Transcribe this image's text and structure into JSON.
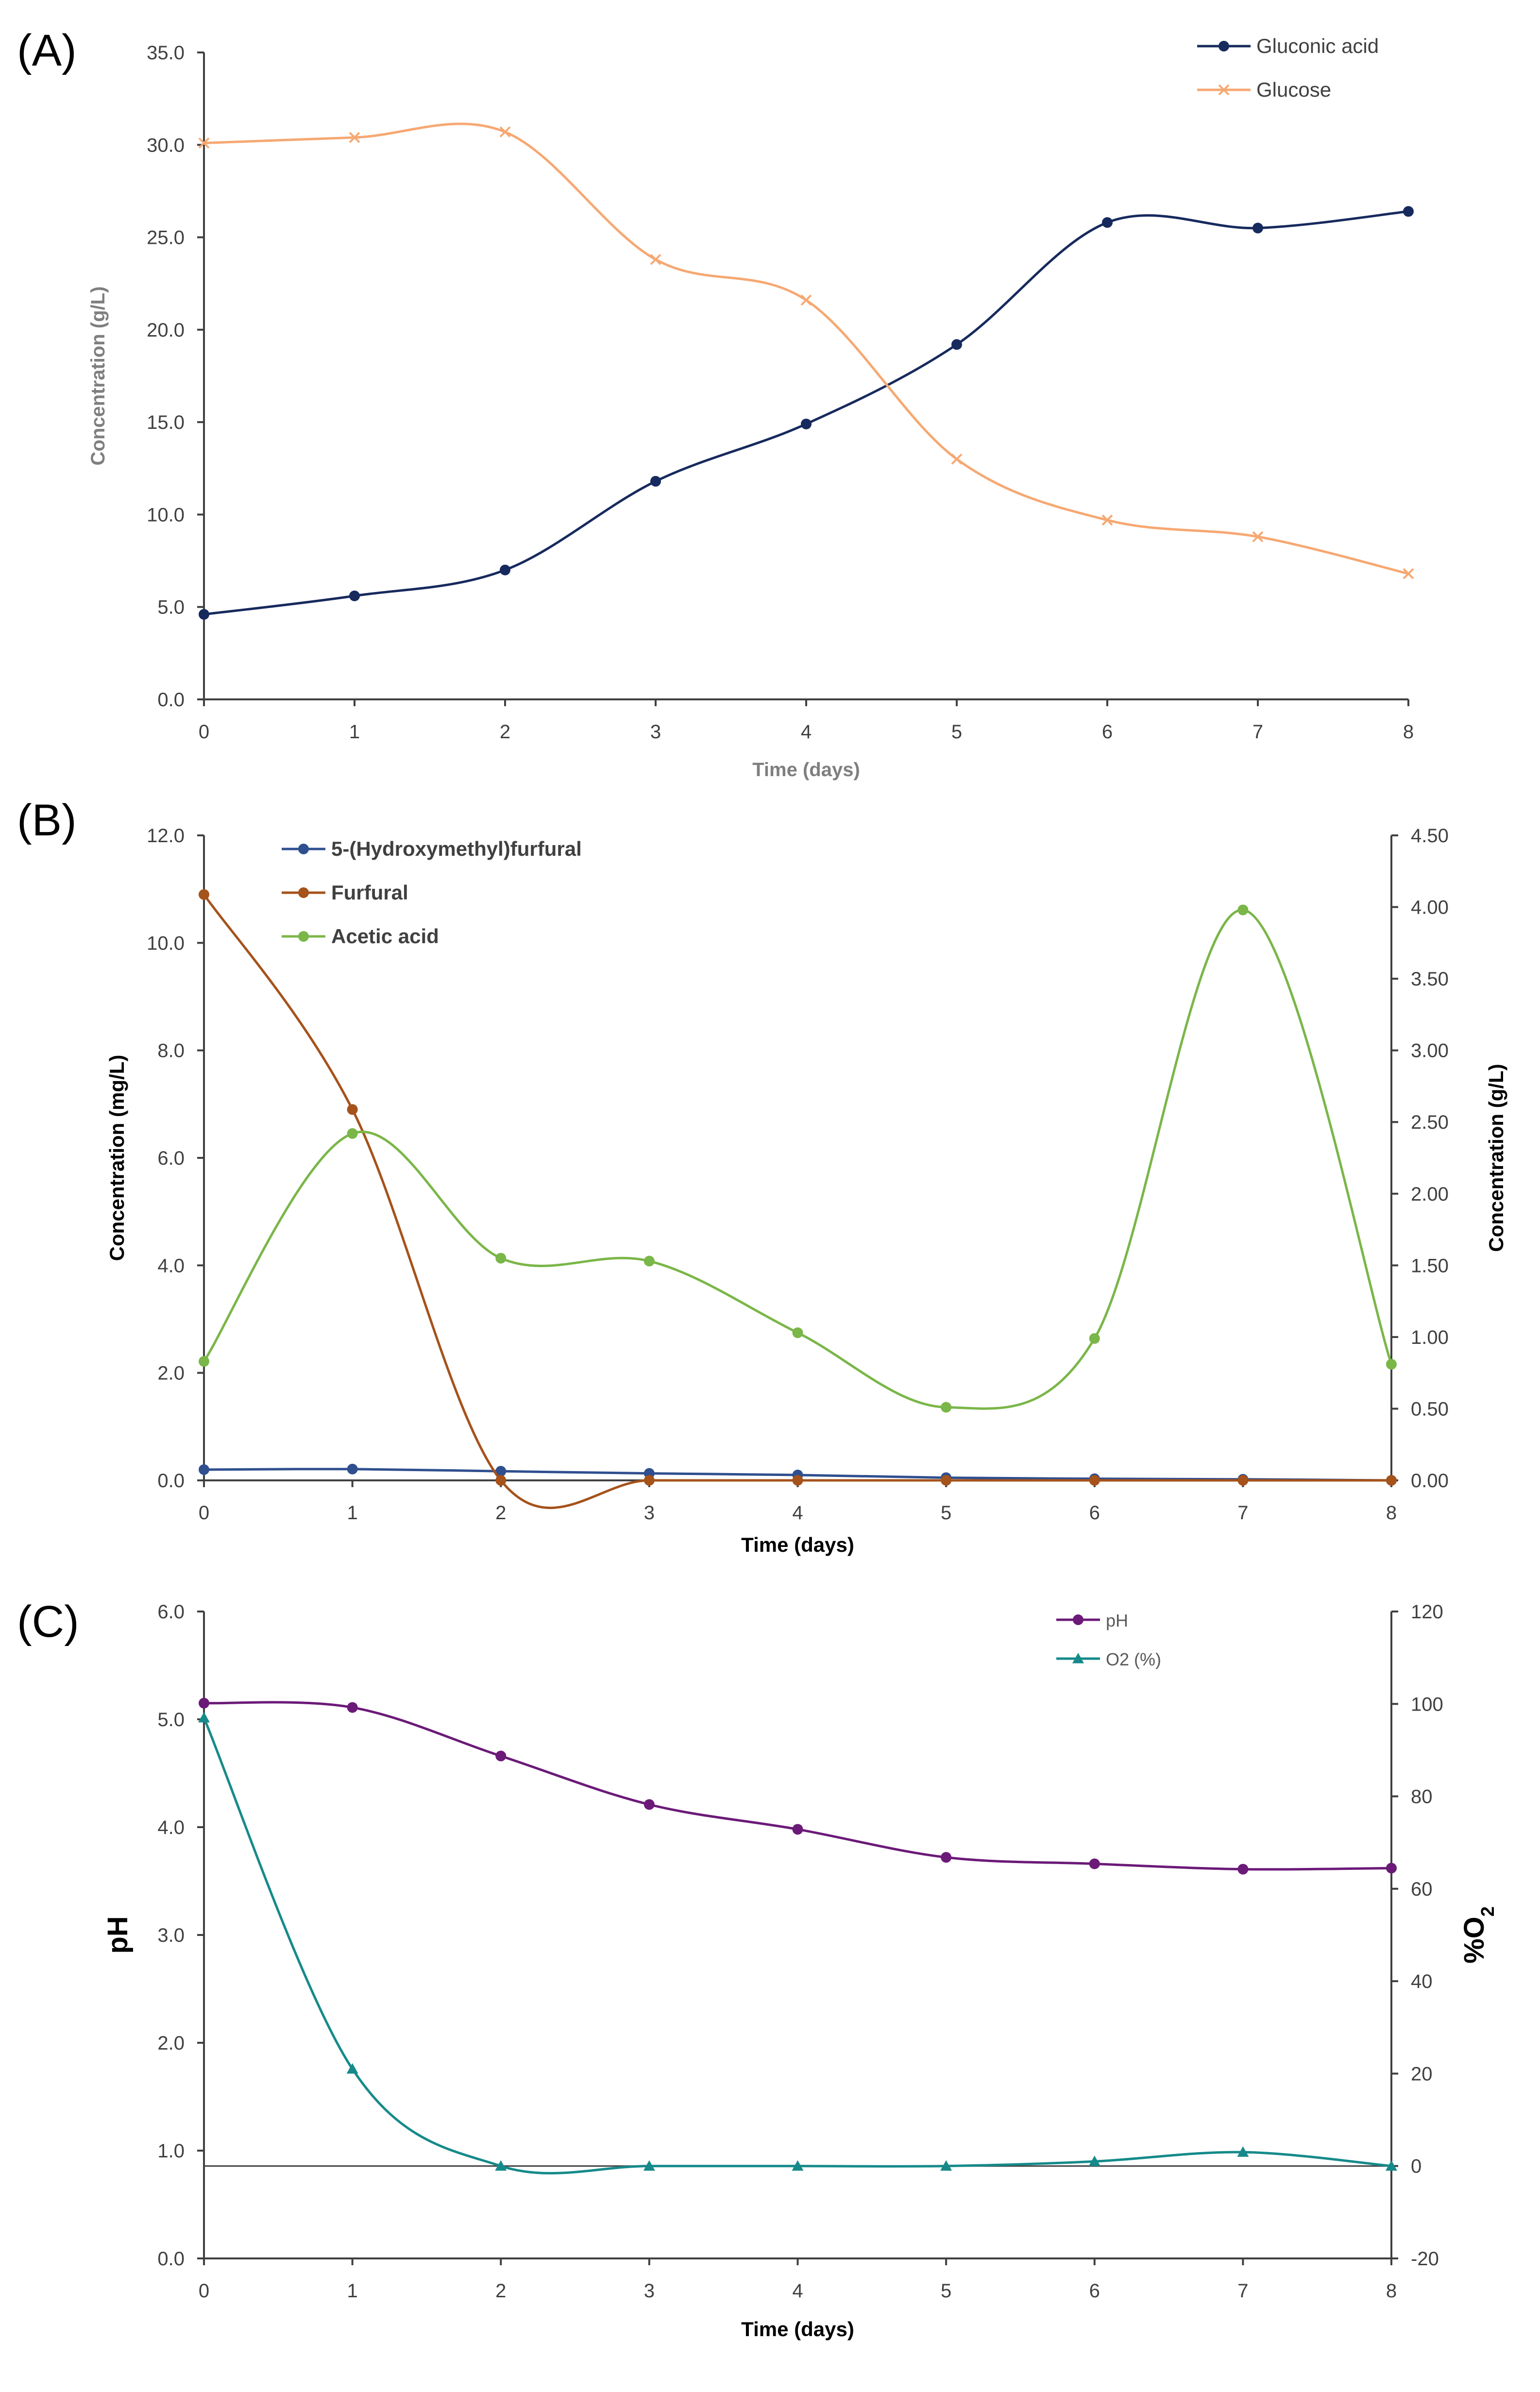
{
  "chart_data": [
    {
      "panel_label": "(A)",
      "type": "line",
      "x": [
        0,
        1,
        2,
        3,
        4,
        5,
        6,
        7,
        8
      ],
      "xlabel": "Time (days)",
      "ylabel": "Concentration (g/L)",
      "ylim": [
        0,
        35
      ],
      "yticks": [
        "0.0",
        "5.0",
        "10.0",
        "15.0",
        "20.0",
        "25.0",
        "30.0",
        "35.0"
      ],
      "xticks": [
        "0",
        "1",
        "2",
        "3",
        "4",
        "5",
        "6",
        "7",
        "8"
      ],
      "legend": "top-right",
      "series": [
        {
          "name": "Gluconic acid",
          "color": "#172a5e",
          "marker": "circle",
          "values": [
            4.6,
            5.6,
            7.0,
            11.8,
            14.9,
            19.2,
            25.8,
            25.5,
            26.4
          ]
        },
        {
          "name": "Glucose",
          "color": "#f6a872",
          "marker": "x",
          "values": [
            30.1,
            30.4,
            30.7,
            23.8,
            21.6,
            13.0,
            9.7,
            8.8,
            6.8
          ]
        }
      ]
    },
    {
      "panel_label": "(B)",
      "type": "line",
      "x": [
        0,
        1,
        2,
        3,
        4,
        5,
        6,
        7,
        8
      ],
      "xlabel": "Time (days)",
      "ylabel": "Concentration (mg/L)",
      "y2label": "Concentration (g/L)",
      "ylim": [
        0,
        12
      ],
      "y2lim": [
        0,
        4.5
      ],
      "yticks": [
        "0.0",
        "2.0",
        "4.0",
        "6.0",
        "8.0",
        "10.0",
        "12.0"
      ],
      "y2ticks": [
        "0.00",
        "0.50",
        "1.00",
        "1.50",
        "2.00",
        "2.50",
        "3.00",
        "3.50",
        "4.00",
        "4.50"
      ],
      "xticks": [
        "0",
        "1",
        "2",
        "3",
        "4",
        "5",
        "6",
        "7",
        "8"
      ],
      "legend": "top-left",
      "series": [
        {
          "name": "5-(Hydroxymethyl)furfural",
          "axis": "left",
          "color": "#2f4f8f",
          "marker": "circle",
          "values": [
            0.2,
            0.21,
            0.17,
            0.13,
            0.1,
            0.05,
            0.03,
            0.02,
            0.0
          ]
        },
        {
          "name": "Furfural",
          "axis": "left",
          "color": "#a5521b",
          "marker": "circle",
          "values": [
            10.9,
            6.9,
            0.0,
            0.0,
            0.0,
            0.0,
            0.0,
            0.0,
            0.0
          ]
        },
        {
          "name": "Acetic acid",
          "axis": "right",
          "color": "#7ab648",
          "marker": "circle",
          "values": [
            0.83,
            2.42,
            1.55,
            1.53,
            1.03,
            0.51,
            0.99,
            3.98,
            0.81
          ]
        }
      ]
    },
    {
      "panel_label": "(C)",
      "type": "line",
      "x": [
        0,
        1,
        2,
        3,
        4,
        5,
        6,
        7,
        8
      ],
      "xlabel": "Time (days)",
      "ylabel": "pH",
      "y2label": "%O",
      "y2label_sub": "2",
      "ylim": [
        0,
        6
      ],
      "y2lim": [
        -20,
        120
      ],
      "yticks": [
        "0.0",
        "1.0",
        "2.0",
        "3.0",
        "4.0",
        "5.0",
        "6.0"
      ],
      "y2ticks": [
        "-20",
        "0",
        "20",
        "40",
        "60",
        "80",
        "100",
        "120"
      ],
      "xticks": [
        "0",
        "1",
        "2",
        "3",
        "4",
        "5",
        "6",
        "7",
        "8"
      ],
      "legend": "top-right",
      "series": [
        {
          "name": "pH",
          "axis": "left",
          "color": "#6b1a78",
          "marker": "circle",
          "values": [
            5.15,
            5.11,
            4.66,
            4.21,
            3.98,
            3.72,
            3.66,
            3.61,
            3.62
          ]
        },
        {
          "name": "O2 (%)",
          "axis": "right",
          "color": "#168a8a",
          "marker": "triangle",
          "values": [
            97,
            21,
            0,
            0,
            0,
            0,
            1,
            3,
            0
          ]
        }
      ]
    }
  ]
}
